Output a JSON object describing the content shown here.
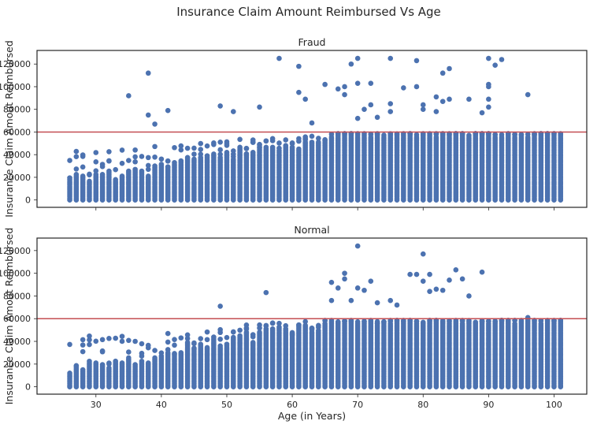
{
  "chart_data": {
    "type": "scatter",
    "suptitle": "Insurance Claim Amount Reimbursed Vs Age",
    "xlabel": "Age (in Years)",
    "ylabel": "Insurance Claim Amout Reimbursed",
    "xlim": [
      21,
      105
    ],
    "xticks": [
      30,
      40,
      50,
      60,
      70,
      80,
      90,
      100
    ],
    "marker_color": "#4c72b0",
    "reference_line": {
      "y": 60000,
      "color": "#c44e52"
    },
    "panels": [
      {
        "title": "Fraud",
        "ylim": [
          -6500,
          132000
        ],
        "yticks": [
          0,
          20000,
          40000,
          60000,
          80000,
          100000,
          120000
        ],
        "age_range": [
          26,
          101
        ],
        "outliers": [
          [
            35,
            92000
          ],
          [
            38,
            112000
          ],
          [
            38,
            75000
          ],
          [
            39,
            67000
          ],
          [
            41,
            79000
          ],
          [
            49,
            83000
          ],
          [
            51,
            78000
          ],
          [
            55,
            82000
          ],
          [
            58,
            125000
          ],
          [
            61,
            118000
          ],
          [
            61,
            95000
          ],
          [
            62,
            89000
          ],
          [
            63,
            68000
          ],
          [
            65,
            102000
          ],
          [
            67,
            98000
          ],
          [
            68,
            100000
          ],
          [
            68,
            93000
          ],
          [
            69,
            120000
          ],
          [
            70,
            125000
          ],
          [
            70,
            103000
          ],
          [
            70,
            72000
          ],
          [
            71,
            80000
          ],
          [
            72,
            84000
          ],
          [
            72,
            103000
          ],
          [
            73,
            73000
          ],
          [
            75,
            125000
          ],
          [
            75,
            85000
          ],
          [
            75,
            78000
          ],
          [
            77,
            99000
          ],
          [
            79,
            123000
          ],
          [
            79,
            100000
          ],
          [
            80,
            80000
          ],
          [
            80,
            84000
          ],
          [
            82,
            78000
          ],
          [
            82,
            91000
          ],
          [
            83,
            87000
          ],
          [
            83,
            112000
          ],
          [
            84,
            116000
          ],
          [
            84,
            89000
          ],
          [
            87,
            89000
          ],
          [
            89,
            77000
          ],
          [
            90,
            125000
          ],
          [
            90,
            102000
          ],
          [
            90,
            100000
          ],
          [
            90,
            89000
          ],
          [
            90,
            82000
          ],
          [
            91,
            119000
          ],
          [
            92,
            124000
          ],
          [
            96,
            93000
          ]
        ]
      },
      {
        "title": "Normal",
        "ylim": [
          -6500,
          131000
        ],
        "yticks": [
          0,
          20000,
          40000,
          60000,
          80000,
          100000,
          120000
        ],
        "age_range": [
          26,
          101
        ],
        "outliers": [
          [
            49,
            71000
          ],
          [
            56,
            83000
          ],
          [
            66,
            92000
          ],
          [
            66,
            76000
          ],
          [
            67,
            87000
          ],
          [
            68,
            100000
          ],
          [
            68,
            95000
          ],
          [
            69,
            76000
          ],
          [
            70,
            124000
          ],
          [
            70,
            87000
          ],
          [
            71,
            85000
          ],
          [
            72,
            93000
          ],
          [
            73,
            74000
          ],
          [
            75,
            76000
          ],
          [
            76,
            72000
          ],
          [
            78,
            99000
          ],
          [
            79,
            99000
          ],
          [
            80,
            117000
          ],
          [
            80,
            93000
          ],
          [
            81,
            84000
          ],
          [
            81,
            99000
          ],
          [
            82,
            86000
          ],
          [
            83,
            85000
          ],
          [
            84,
            94000
          ],
          [
            85,
            103000
          ],
          [
            86,
            95000
          ],
          [
            87,
            80000
          ],
          [
            89,
            101000
          ],
          [
            96,
            61000
          ]
        ]
      }
    ]
  }
}
